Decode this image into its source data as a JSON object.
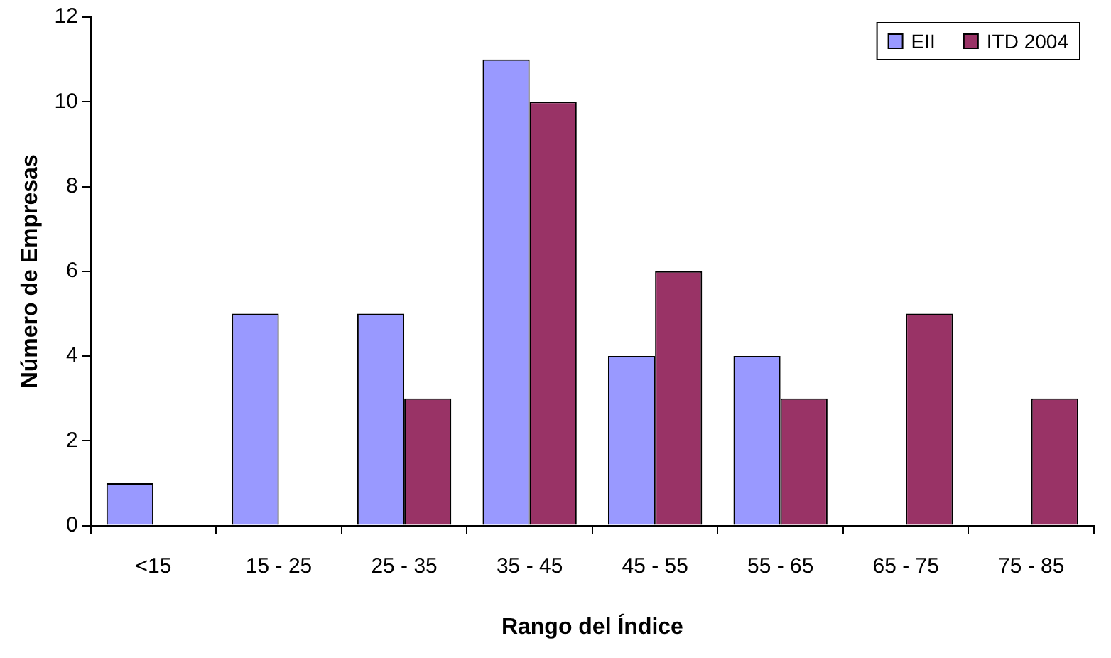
{
  "chart_data": {
    "type": "bar",
    "xlabel": "Rango del Índice",
    "ylabel": "Número de Empresas",
    "categories": [
      "<15",
      "15 - 25",
      "25 - 35",
      "35 - 45",
      "45 - 55",
      "55 - 65",
      "65 - 75",
      "75 - 85"
    ],
    "series": [
      {
        "name": "EII",
        "color": "#9999ff",
        "values": [
          1,
          5,
          5,
          11,
          4,
          4,
          0,
          0
        ]
      },
      {
        "name": "ITD 2004",
        "color": "#993366",
        "values": [
          0,
          0,
          3,
          10,
          6,
          3,
          5,
          3
        ]
      }
    ],
    "ylim": [
      0,
      12
    ],
    "yticks": [
      0,
      2,
      4,
      6,
      8,
      10,
      12
    ],
    "grid": false,
    "legend": "top right"
  }
}
